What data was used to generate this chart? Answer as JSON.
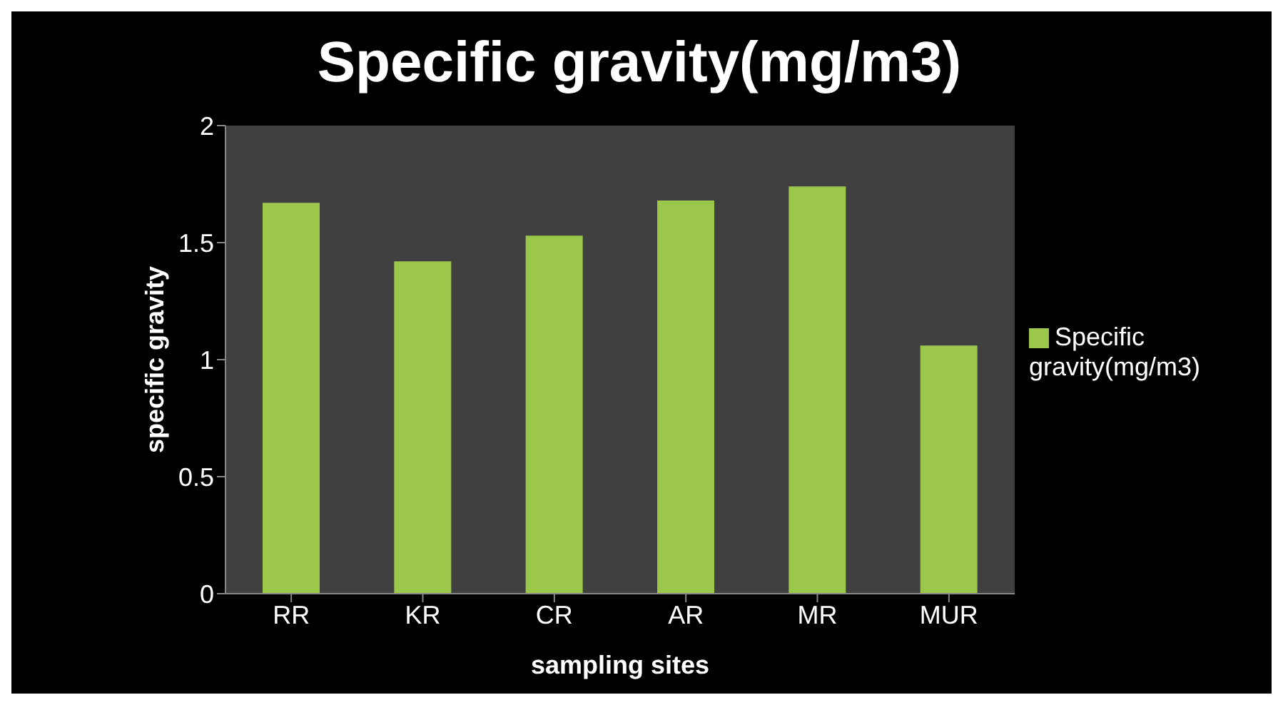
{
  "chart_data": {
    "type": "bar",
    "title": "Specific gravity(mg/m3)",
    "xlabel": "sampling sites",
    "ylabel": "specific gravity",
    "categories": [
      "RR",
      "KR",
      "CR",
      "AR",
      "MR",
      "MUR"
    ],
    "series": [
      {
        "name": "Specific gravity(mg/m3)",
        "color": "#9bc84a",
        "values": [
          1.67,
          1.42,
          1.53,
          1.68,
          1.74,
          1.06
        ]
      }
    ],
    "ylim": [
      0,
      2
    ],
    "yticks": [
      0,
      0.5,
      1,
      1.5,
      2
    ],
    "grid": false,
    "legend": "right"
  }
}
